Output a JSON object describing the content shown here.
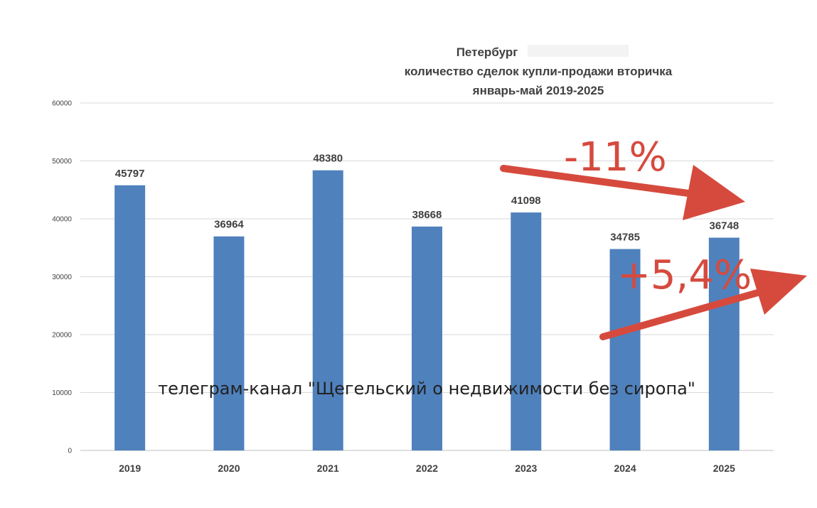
{
  "chart_data": {
    "type": "bar",
    "title": [
      "Петербург",
      "количество сделок купли-продажи вторичка",
      "январь-май 2019-2025"
    ],
    "categories": [
      "2019",
      "2020",
      "2021",
      "2022",
      "2023",
      "2024",
      "2025"
    ],
    "values": [
      45797,
      36964,
      48380,
      38668,
      41098,
      34785,
      36748
    ],
    "data_labels": [
      "45797",
      "36964",
      "48380",
      "38668",
      "41098",
      "34785",
      "36748"
    ],
    "ylim": [
      0,
      60000
    ],
    "yticks": [
      "0",
      "10000",
      "20000",
      "30000",
      "40000",
      "50000",
      "60000"
    ],
    "grid": true,
    "bar_color": "#4f81bd",
    "annotations": {
      "down": "-11%",
      "up": "+5,4%",
      "color": "#d64a3e"
    },
    "watermark": "телеграм-канал \"Щегельский о недвижимости без сиропа\""
  }
}
